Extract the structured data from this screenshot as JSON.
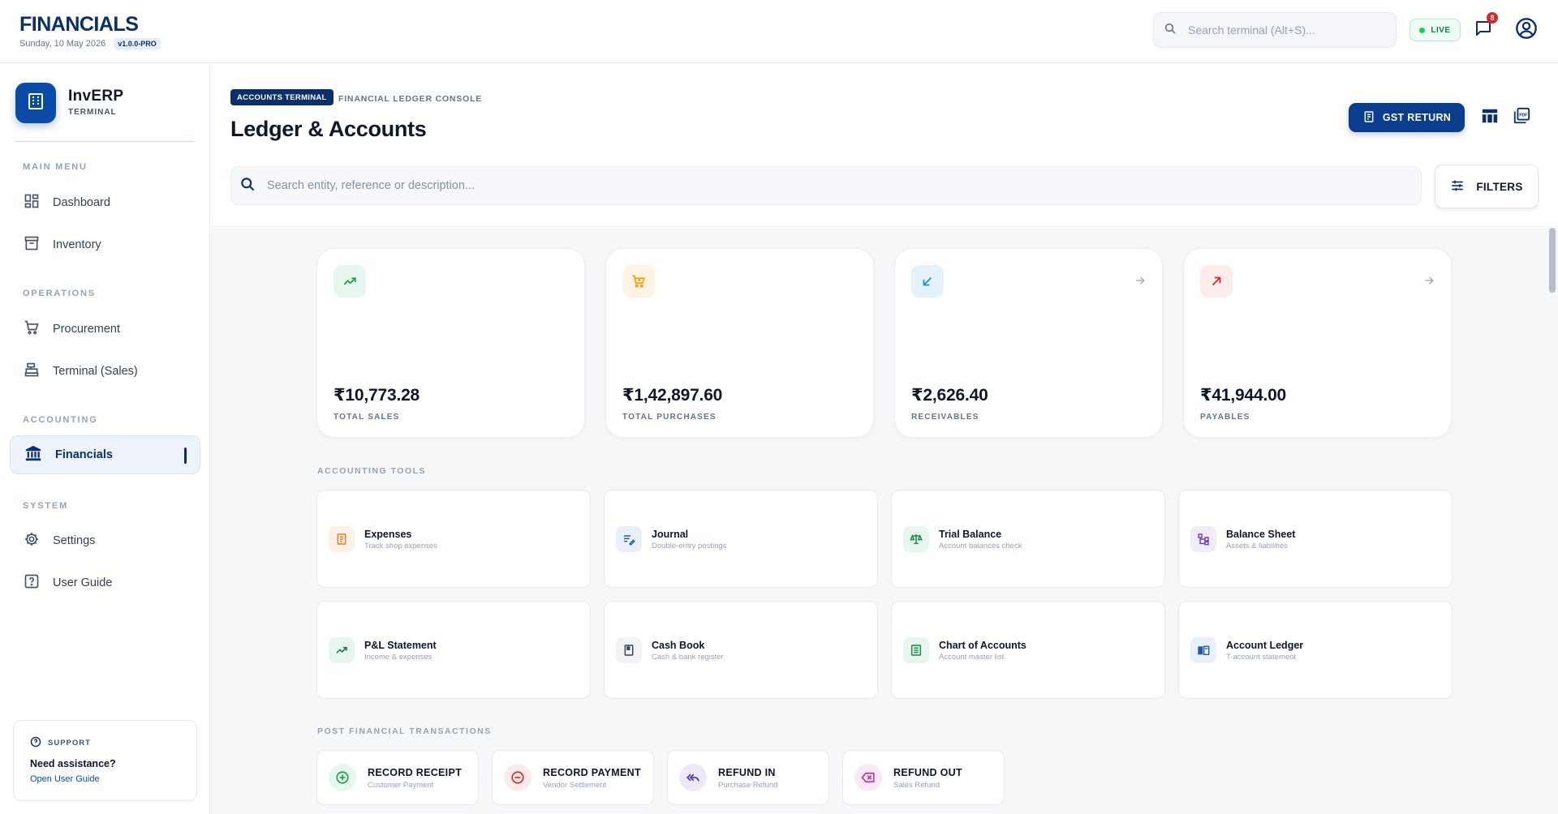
{
  "header": {
    "title": "FINANCIALS",
    "date": "Sunday, 10 May 2026",
    "version": "v1.0.0-PRO",
    "search_placeholder": "Search terminal (Alt+S)...",
    "live_label": "LIVE",
    "notification_count": "8"
  },
  "sidebar": {
    "app_name": "InvERP",
    "app_sub": "TERMINAL",
    "sections": {
      "main_menu": "MAIN MENU",
      "operations": "OPERATIONS",
      "accounting": "ACCOUNTING",
      "system": "SYSTEM"
    },
    "items": {
      "dashboard": "Dashboard",
      "inventory": "Inventory",
      "procurement": "Procurement",
      "terminal_sales": "Terminal (Sales)",
      "financials": "Financials",
      "settings": "Settings",
      "user_guide": "User Guide"
    },
    "support": {
      "label": "SUPPORT",
      "heading": "Need assistance?",
      "link": "Open User Guide"
    }
  },
  "page": {
    "breadcrumb_pill": "ACCOUNTS TERMINAL",
    "breadcrumb_text": "FINANCIAL LEDGER CONSOLE",
    "title": "Ledger & Accounts",
    "gst_button": "GST RETURN",
    "search_placeholder": "Search entity, reference or description...",
    "filters_button": "FILTERS"
  },
  "stats": [
    {
      "value": "₹10,773.28",
      "label": "TOTAL SALES",
      "icon": "trending-up-icon"
    },
    {
      "value": "₹1,42,897.60",
      "label": "TOTAL PURCHASES",
      "icon": "cart-icon"
    },
    {
      "value": "₹2,626.40",
      "label": "RECEIVABLES",
      "icon": "arrow-down-left-icon"
    },
    {
      "value": "₹41,944.00",
      "label": "PAYABLES",
      "icon": "arrow-up-right-icon"
    }
  ],
  "tools_section_label": "ACCOUNTING TOOLS",
  "tools": [
    {
      "title": "Expenses",
      "sub": "Track shop expenses"
    },
    {
      "title": "Journal",
      "sub": "Double-entry postings"
    },
    {
      "title": "Trial Balance",
      "sub": "Account balances check"
    },
    {
      "title": "Balance Sheet",
      "sub": "Assets & liabilities"
    },
    {
      "title": "P&L Statement",
      "sub": "Income & expenses"
    },
    {
      "title": "Cash Book",
      "sub": "Cash & bank register"
    },
    {
      "title": "Chart of Accounts",
      "sub": "Account master list"
    },
    {
      "title": "Account Ledger",
      "sub": "T-account statement"
    }
  ],
  "transactions_section_label": "POST FINANCIAL TRANSACTIONS",
  "transactions": [
    {
      "title": "RECORD RECEIPT",
      "sub": "Customer Payment"
    },
    {
      "title": "RECORD PAYMENT",
      "sub": "Vendor Settlement"
    },
    {
      "title": "REFUND IN",
      "sub": "Purchase Refund"
    },
    {
      "title": "REFUND OUT",
      "sub": "Sales Refund"
    }
  ],
  "colors": {
    "brand_navy": "#0b2f6b",
    "primary_blue": "#0b3d8f",
    "live_green": "#22c55e",
    "badge_red": "#dc2626"
  }
}
